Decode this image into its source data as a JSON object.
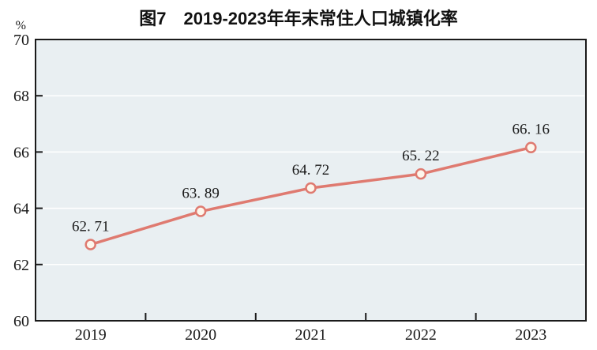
{
  "page": {
    "background": "#ffffff"
  },
  "chart_data": {
    "type": "line",
    "title": "图7　2019-2023年年末常住人口城镇化率",
    "unit_label": "%",
    "categories": [
      "2019",
      "2020",
      "2021",
      "2022",
      "2023"
    ],
    "series": [
      {
        "name": "年末常住人口城镇化率",
        "values": [
          62.71,
          63.89,
          64.72,
          65.22,
          66.16
        ],
        "point_labels": [
          "62. 71",
          "63. 89",
          "64. 72",
          "65. 22",
          "66. 16"
        ]
      }
    ],
    "xlabel": "",
    "ylabel": "%",
    "ylim": [
      60,
      70
    ],
    "yticks": [
      60,
      62,
      64,
      66,
      68,
      70
    ],
    "grid": true,
    "legend_position": "none",
    "colors": {
      "line": "#df7a70",
      "marker_fill": "#fdf6ec",
      "marker_stroke": "#df7a70",
      "plot_background": "#e9eff2",
      "axis": "#1a1a1a",
      "gridline": "#ffffff",
      "text": "#1a1a1a"
    }
  }
}
